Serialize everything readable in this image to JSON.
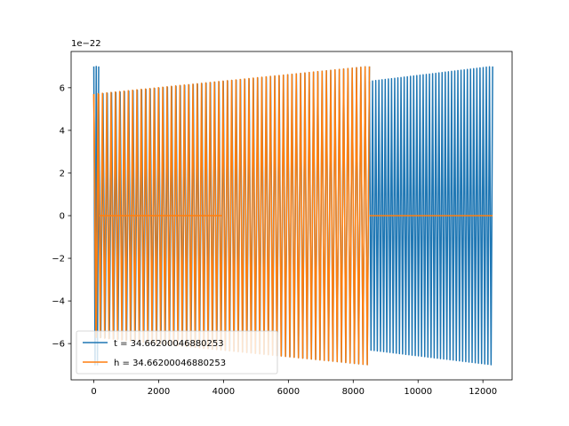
{
  "chart_data": {
    "type": "line",
    "title": "",
    "xlabel": "",
    "ylabel": "",
    "y_offset_text": "1e−22",
    "xlim": [
      -700,
      12900
    ],
    "ylim": [
      -7.7,
      7.7
    ],
    "xticks": [
      0,
      2000,
      4000,
      6000,
      8000,
      10000,
      12000
    ],
    "xtick_labels": [
      "0",
      "2000",
      "4000",
      "6000",
      "8000",
      "10000",
      "12000"
    ],
    "yticks": [
      -6,
      -4,
      -2,
      0,
      2,
      4,
      6
    ],
    "ytick_labels": [
      "−6",
      "−4",
      "−2",
      "0",
      "2",
      "4",
      "6"
    ],
    "grid": false,
    "legend_location": "lower-left",
    "series": [
      {
        "name": "t = 34.66200046880253",
        "color": "#1f77b4",
        "description": "oscillating signal",
        "segments": [
          {
            "x_start": 0,
            "x_end": 150,
            "cycles": 2,
            "amp_start": 7.0,
            "amp_end": 7.0
          },
          {
            "x_start": 150,
            "x_end": 8500,
            "cycles": 63,
            "amp_start": 5.7,
            "amp_end": 7.0
          },
          {
            "x_start": 8500,
            "x_end": 12300,
            "cycles": 39,
            "amp_start": 6.3,
            "amp_end": 7.0
          }
        ]
      },
      {
        "name": "h = 34.66200046880253",
        "color": "#ff7f0e",
        "segments": [
          {
            "x_start": 0,
            "x_end": 150,
            "cycles": 1,
            "amp_start": 5.7,
            "amp_end": 5.7
          },
          {
            "x_start": 150,
            "x_end": 3950,
            "cycles": 0,
            "amp_start": 0,
            "amp_end": 0,
            "note": "flat zero line"
          },
          {
            "x_start": 0,
            "x_end": 8500,
            "cycles": 64,
            "amp_start": 5.7,
            "amp_end": 7.0
          },
          {
            "x_start": 8500,
            "x_end": 12300,
            "cycles": 0,
            "amp_start": 0,
            "amp_end": 0,
            "note": "flat zero line"
          }
        ]
      }
    ]
  }
}
